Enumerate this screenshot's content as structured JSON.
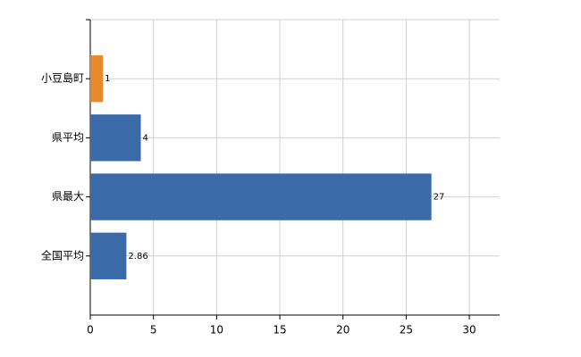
{
  "chart_data": {
    "type": "hbar",
    "categories": [
      "小豆島町",
      "県平均",
      "県最大",
      "全国平均"
    ],
    "values": [
      1,
      4,
      27,
      2.86
    ],
    "colors": [
      "#e8892e",
      "#3a6aa8",
      "#3a6aa8",
      "#3a6aa8"
    ],
    "xlim": [
      0,
      32.4
    ],
    "xticks": [
      0,
      5,
      10,
      15,
      20,
      25,
      30
    ],
    "grid": true
  }
}
